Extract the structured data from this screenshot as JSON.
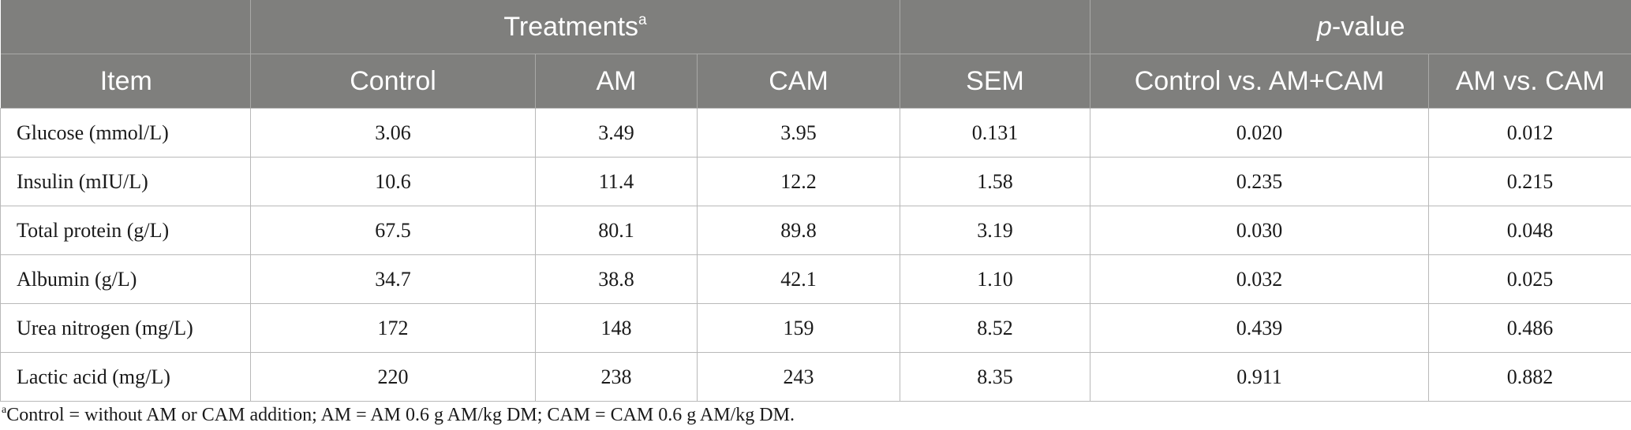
{
  "header": {
    "item_label": "Item",
    "treatments_label": "Treatments",
    "treatments_sup": "a",
    "p_value_italic": "p",
    "p_value_rest": "-value",
    "columns": [
      "Control",
      "AM",
      "CAM",
      "SEM",
      "Control vs. AM+CAM",
      "AM vs. CAM"
    ]
  },
  "rows": [
    {
      "item": "Glucose (mmol/L)",
      "values": [
        "3.06",
        "3.49",
        "3.95",
        "0.131",
        "0.020",
        "0.012"
      ]
    },
    {
      "item": "Insulin (mIU/L)",
      "values": [
        "10.6",
        "11.4",
        "12.2",
        "1.58",
        "0.235",
        "0.215"
      ]
    },
    {
      "item": "Total protein (g/L)",
      "values": [
        "67.5",
        "80.1",
        "89.8",
        "3.19",
        "0.030",
        "0.048"
      ]
    },
    {
      "item": "Albumin (g/L)",
      "values": [
        "34.7",
        "38.8",
        "42.1",
        "1.10",
        "0.032",
        "0.025"
      ]
    },
    {
      "item": "Urea nitrogen (mg/L)",
      "values": [
        "172",
        "148",
        "159",
        "8.52",
        "0.439",
        "0.486"
      ]
    },
    {
      "item": "Lactic acid (mg/L)",
      "values": [
        "220",
        "238",
        "243",
        "8.35",
        "0.911",
        "0.882"
      ]
    }
  ],
  "footnote": {
    "sup": "a",
    "text": "Control = without AM or CAM addition; AM = AM 0.6 g AM/kg DM; CAM = CAM 0.6 g AM/kg DM."
  },
  "colors": {
    "header_bg": "#7f7f7d",
    "header_text": "#ffffff",
    "grid": "#b9b9b9"
  }
}
